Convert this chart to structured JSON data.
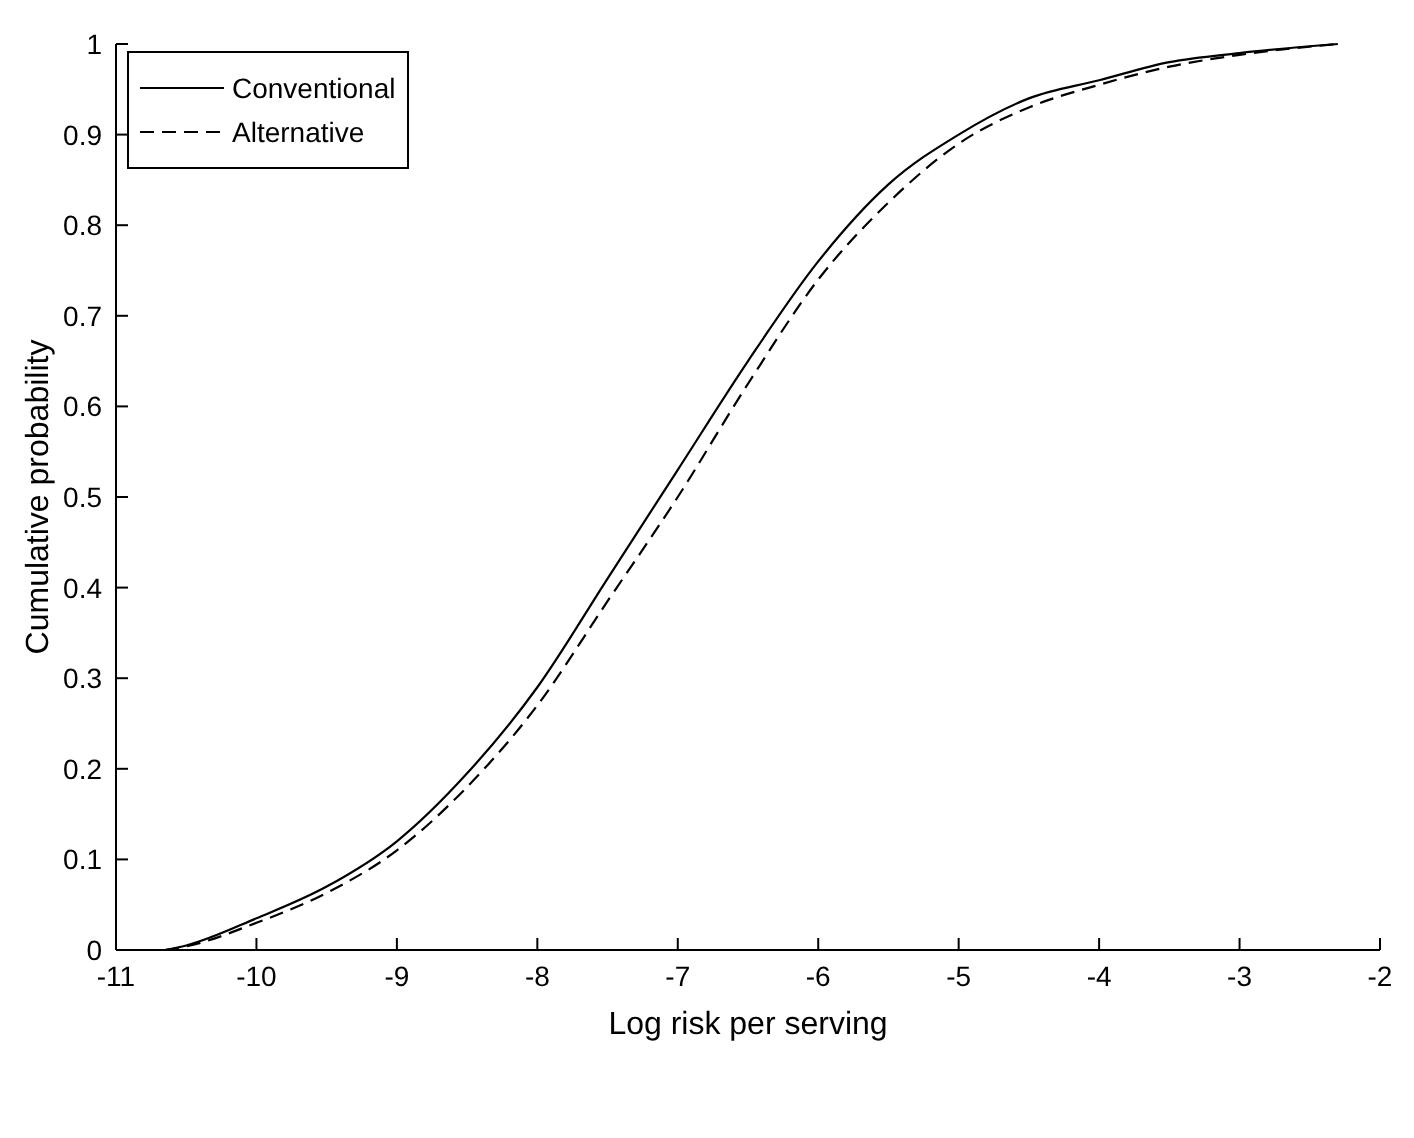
{
  "chart_data": {
    "type": "line",
    "xlabel": "Log risk per serving",
    "ylabel": "Cumulative probability",
    "xlim": [
      -11,
      -2
    ],
    "xticks": [
      -11,
      -10,
      -9,
      -8,
      -7,
      -6,
      -5,
      -4,
      -3,
      -2
    ],
    "ylim": [
      0,
      1
    ],
    "yticks": [
      0,
      0.1,
      0.2,
      0.3,
      0.4,
      0.5,
      0.6,
      0.7,
      0.8,
      0.9,
      1
    ],
    "grid": false,
    "legend": "top left",
    "x": [
      -10.65,
      -10.5,
      -10,
      -9.5,
      -9,
      -8.5,
      -8,
      -7.5,
      -7,
      -6.5,
      -6,
      -5.5,
      -5,
      -4.5,
      -4,
      -3.5,
      -3,
      -2.3
    ],
    "series": [
      {
        "name": "Conventional",
        "color": "#000000",
        "line_style": "solid",
        "values": [
          0,
          0.005,
          0.035,
          0.07,
          0.12,
          0.195,
          0.29,
          0.41,
          0.53,
          0.65,
          0.76,
          0.845,
          0.9,
          0.94,
          0.96,
          0.98,
          0.99,
          1
        ]
      },
      {
        "name": "Alternative",
        "color": "#000000",
        "line_style": "dashed",
        "values": [
          0,
          0.004,
          0.03,
          0.063,
          0.11,
          0.18,
          0.27,
          0.385,
          0.5,
          0.625,
          0.74,
          0.825,
          0.89,
          0.93,
          0.955,
          0.975,
          0.988,
          1
        ]
      }
    ]
  }
}
